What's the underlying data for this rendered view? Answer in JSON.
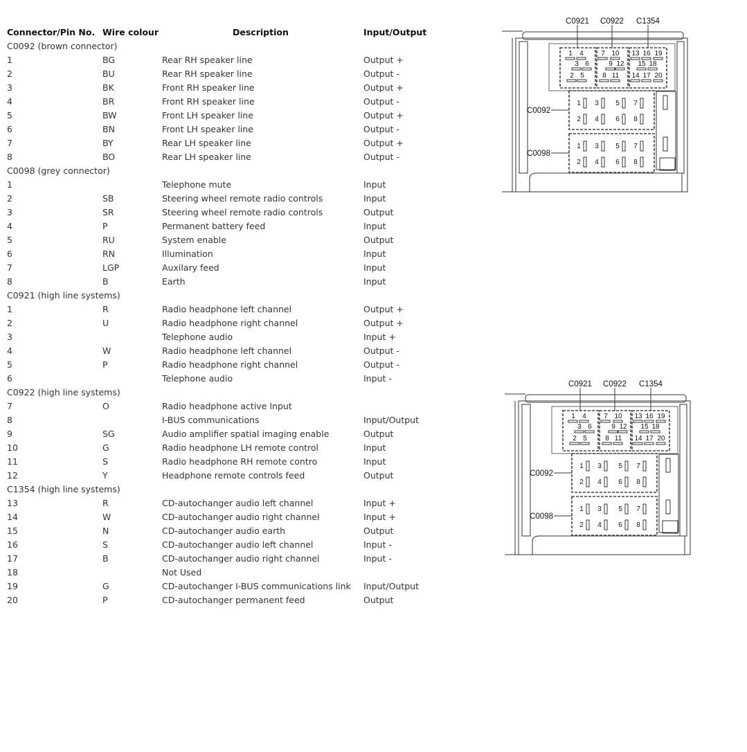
{
  "table": {
    "headers": [
      "Connector/Pin No.",
      "Wire colour",
      "Description",
      "Input/Output"
    ],
    "sections": [
      {
        "title": "C0092 (brown connector)",
        "rows": [
          [
            "1",
            "BG",
            "Rear RH speaker line",
            "Output +"
          ],
          [
            "2",
            "BU",
            "Rear RH speaker line",
            "Output -"
          ],
          [
            "3",
            "BK",
            "Front RH speaker line",
            "Output +"
          ],
          [
            "4",
            "BR",
            "Front RH speaker line",
            "Output -"
          ],
          [
            "5",
            "BW",
            "Front LH speaker line",
            "Output +"
          ],
          [
            "6",
            "BN",
            "Front LH speaker line",
            "Output -"
          ],
          [
            "7",
            "BY",
            "Rear LH speaker line",
            "Output +"
          ],
          [
            "8",
            "BO",
            "Rear LH speaker line",
            "Output -"
          ]
        ]
      },
      {
        "title": "C0098 (grey connector)",
        "rows": [
          [
            "1",
            "",
            "Telephone mute",
            "Input"
          ],
          [
            "2",
            "SB",
            "Steering wheel remote radio controls",
            "Input"
          ],
          [
            "3",
            "SR",
            "Steering wheel remote radio controls",
            "Output"
          ],
          [
            "4",
            "P",
            "Permanent battery feed",
            "Input"
          ],
          [
            "5",
            "RU",
            "System enable",
            "Output"
          ],
          [
            "6",
            "RN",
            "Illumination",
            "Input"
          ],
          [
            "7",
            "LGP",
            "Auxilary feed",
            "Input"
          ],
          [
            "8",
            "B",
            "Earth",
            "Input"
          ]
        ]
      },
      {
        "title": "C0921 (high line systems)",
        "rows": [
          [
            "1",
            "R",
            "Radio headphone left channel",
            "Output +"
          ],
          [
            "2",
            "U",
            "Radio headphone right channel",
            "Output +"
          ],
          [
            "3",
            "",
            "Telephone audio",
            "Input +"
          ],
          [
            "4",
            "W",
            "Radio headphone left channel",
            "Output -"
          ],
          [
            "5",
            "P",
            "Radio headphone right channel",
            "Output -"
          ],
          [
            "6",
            "",
            "Telephone audio",
            "Input -"
          ]
        ]
      },
      {
        "title": "C0922 (high line systems)",
        "rows": [
          [
            "7",
            "O",
            "Radio headphone active Input",
            ""
          ],
          [
            "8",
            "",
            "I-BUS communications",
            "Input/Output"
          ],
          [
            "9",
            "SG",
            "Audio amplifier spatial imaging enable",
            "Output"
          ],
          [
            "10",
            "G",
            "Radio headphone LH remote control",
            "Input"
          ],
          [
            "11",
            "S",
            "Radio headphone RH remote contro",
            "Input"
          ],
          [
            "12",
            "Y",
            "Headphone remote controls feed",
            "Output"
          ]
        ]
      },
      {
        "title": "C1354 (high line systems)",
        "rows": [
          [
            "13",
            "R",
            "CD-autochanger audio left channel",
            "Input +"
          ],
          [
            "14",
            "W",
            "CD-autochanger audio right channel",
            "Input +"
          ],
          [
            "15",
            "N",
            "CD-autochanger audio earth",
            "Output"
          ],
          [
            "16",
            "S",
            "CD-autochanger audio left channel",
            "Input -"
          ],
          [
            "17",
            "B",
            "CD-autochanger audio right channel",
            "Input -"
          ],
          [
            "18",
            "",
            "Not Used",
            ""
          ],
          [
            "19",
            "G",
            "CD-autochanger I-BUS communications link",
            "Input/Output"
          ],
          [
            "20",
            "P",
            "CD-autochanger permanent feed",
            "Output"
          ]
        ]
      }
    ]
  },
  "diagram": {
    "top_labels": [
      "C0921",
      "C0922",
      "C1354"
    ],
    "side_labels": [
      "C0092",
      "C0098"
    ],
    "c0921_pins": [
      "1",
      "4",
      "3",
      "6",
      "2",
      "5"
    ],
    "c0922_pins": [
      "7",
      "10",
      "9",
      "12",
      "8",
      "11"
    ],
    "c1354_pins": [
      "13",
      "16",
      "19",
      "15",
      "18",
      "14",
      "17",
      "20"
    ],
    "c0092_pins": [
      "1",
      "3",
      "5",
      "7",
      "2",
      "4",
      "6",
      "8"
    ],
    "c0098_pins": [
      "1",
      "3",
      "5",
      "7",
      "2",
      "4",
      "6",
      "8"
    ]
  }
}
